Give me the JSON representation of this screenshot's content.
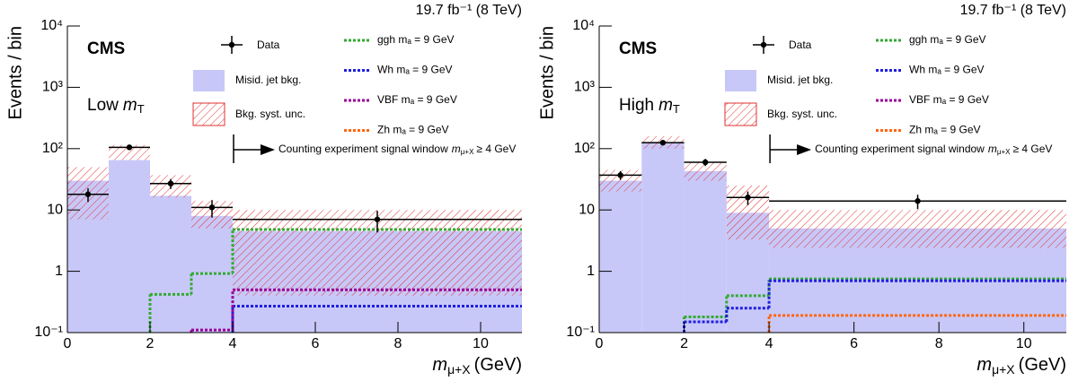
{
  "chart_data": [
    {
      "type": "histogram",
      "lumi": "19.7 fb⁻¹ (8 TeV)",
      "experiment": "CMS",
      "region": {
        "text": "Low",
        "symbol": "m",
        "sub": "T"
      },
      "annotation": {
        "text": "Counting experiment signal window",
        "symbol": "m",
        "sub": "μ+X",
        "tail": "≥ 4 GeV"
      },
      "ylabel": "Events / bin",
      "xlabel": {
        "symbol": "m",
        "sub": "μ+X",
        "unit": "(GeV)"
      },
      "bins": [
        0,
        1,
        2,
        3,
        4,
        11
      ],
      "xlim": [
        0,
        11
      ],
      "xticks": [
        0,
        2,
        4,
        6,
        8,
        10
      ],
      "ylim": [
        0.1,
        10000
      ],
      "log_y": true,
      "yticks": [
        {
          "value": 0.1,
          "label": "10⁻¹"
        },
        1,
        10,
        {
          "value": 100,
          "label": "10²"
        },
        {
          "value": 1000,
          "label": "10³"
        },
        {
          "value": 10000,
          "label": "10⁴"
        }
      ],
      "data": {
        "name": "Data",
        "color": "#000000",
        "values": [
          18,
          105,
          27,
          11,
          7
        ],
        "errors": [
          4.5,
          10,
          5,
          3.5,
          2.7
        ]
      },
      "background": {
        "name": "Misid. jet bkg.",
        "color": "#c8c8f8",
        "values": [
          30,
          65,
          17,
          8,
          4.5
        ]
      },
      "uncertainty": {
        "name": "Bkg. syst. unc.",
        "color": "#e03030",
        "low": [
          7,
          65,
          16,
          5,
          0.4
        ],
        "high": [
          50,
          115,
          37,
          14,
          10
        ]
      },
      "series": [
        {
          "name": "ggh mₐ = 9 GeV",
          "color": "#33aa33",
          "values": [
            null,
            null,
            0.42,
            0.92,
            4.8
          ]
        },
        {
          "name": "Wh mₐ = 9 GeV",
          "color": "#1f1fe0",
          "values": [
            null,
            null,
            null,
            null,
            0.27
          ]
        },
        {
          "name": "VBF mₐ = 9 GeV",
          "color": "#990099",
          "values": [
            null,
            null,
            null,
            0.11,
            0.5
          ]
        },
        {
          "name": "Zh mₐ = 9 GeV",
          "color": "#ff6611",
          "values": [
            null,
            null,
            null,
            null,
            null
          ]
        }
      ]
    },
    {
      "type": "histogram",
      "lumi": "19.7 fb⁻¹ (8 TeV)",
      "experiment": "CMS",
      "region": {
        "text": "High",
        "symbol": "m",
        "sub": "T"
      },
      "annotation": {
        "text": "Counting experiment signal window",
        "symbol": "m",
        "sub": "μ+X",
        "tail": "≥ 4 GeV"
      },
      "ylabel": "Events / bin",
      "xlabel": {
        "symbol": "m",
        "sub": "μ+X",
        "unit": "(GeV)"
      },
      "bins": [
        0,
        1,
        2,
        3,
        4,
        11
      ],
      "xlim": [
        0,
        11
      ],
      "xticks": [
        0,
        2,
        4,
        6,
        8,
        10
      ],
      "ylim": [
        0.1,
        10000
      ],
      "log_y": true,
      "yticks": [
        {
          "value": 0.1,
          "label": "10⁻¹"
        },
        1,
        10,
        {
          "value": 100,
          "label": "10²"
        },
        {
          "value": 1000,
          "label": "10³"
        },
        {
          "value": 10000,
          "label": "10⁴"
        }
      ],
      "data": {
        "name": "Data",
        "color": "#000000",
        "values": [
          37,
          125,
          60,
          16,
          14
        ],
        "errors": [
          6,
          11,
          8,
          4,
          3.7
        ]
      },
      "background": {
        "name": "Misid. jet bkg.",
        "color": "#c8c8f8",
        "values": [
          30,
          125,
          43,
          9,
          5
        ]
      },
      "uncertainty": {
        "name": "Bkg. syst. unc.",
        "color": "#e03030",
        "low": [
          20,
          100,
          30,
          3.3,
          2.4
        ],
        "high": [
          45,
          160,
          60,
          25,
          10
        ]
      },
      "series": [
        {
          "name": "ggh mₐ = 9 GeV",
          "color": "#33aa33",
          "values": [
            null,
            null,
            0.18,
            0.4,
            0.75
          ]
        },
        {
          "name": "Wh mₐ = 9 GeV",
          "color": "#1f1fe0",
          "values": [
            null,
            null,
            0.15,
            0.25,
            0.7
          ]
        },
        {
          "name": "VBF mₐ = 9 GeV",
          "color": "#990099",
          "values": [
            null,
            null,
            null,
            null,
            null
          ]
        },
        {
          "name": "Zh mₐ = 9 GeV",
          "color": "#ff6611",
          "values": [
            null,
            null,
            null,
            null,
            0.19
          ]
        }
      ]
    }
  ]
}
